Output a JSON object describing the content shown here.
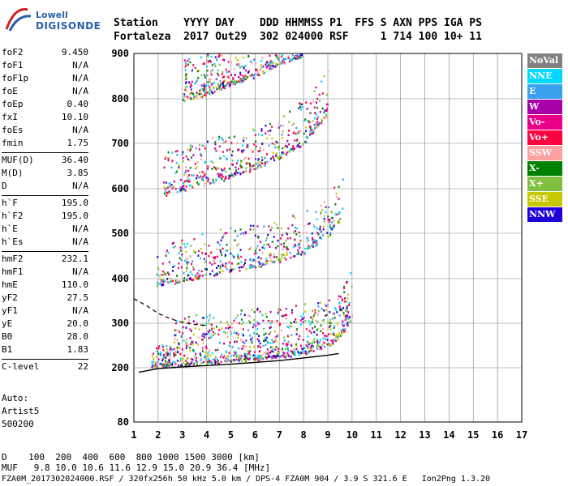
{
  "logo": {
    "line1": "Lowell",
    "line2": "DIGISONDE"
  },
  "header": {
    "labels": "Station    YYYY DAY    DDD HHMMSS P1  FFS S AXN PPS IGA PS",
    "values": "Fortaleza  2017 Out29  302 024000 RSF     1 714 100 10+ 11"
  },
  "params": [
    {
      "label": "foF2",
      "value": "9.450"
    },
    {
      "label": "foF1",
      "value": "N/A"
    },
    {
      "label": "foF1p",
      "value": "N/A"
    },
    {
      "label": "foE",
      "value": "N/A"
    },
    {
      "label": "foEp",
      "value": "0.40"
    },
    {
      "label": "fxI",
      "value": "10.10"
    },
    {
      "label": "foEs",
      "value": "N/A"
    },
    {
      "label": "fmin",
      "value": "1.75"
    },
    {
      "label": "MUF(D)",
      "value": "36.40"
    },
    {
      "label": "M(D)",
      "value": "3.85"
    },
    {
      "label": "D",
      "value": "N/A"
    },
    {
      "label": "h`F",
      "value": "195.0"
    },
    {
      "label": "h`F2",
      "value": "195.0"
    },
    {
      "label": "h`E",
      "value": "N/A"
    },
    {
      "label": "h`Es",
      "value": "N/A"
    },
    {
      "label": "hmF2",
      "value": "232.1"
    },
    {
      "label": "hmF1",
      "value": "N/A"
    },
    {
      "label": "hmE",
      "value": "110.0"
    },
    {
      "label": "yF2",
      "value": "27.5"
    },
    {
      "label": "yF1",
      "value": "N/A"
    },
    {
      "label": "yE",
      "value": "20.0"
    },
    {
      "label": "B0",
      "value": "28.0"
    },
    {
      "label": "B1",
      "value": "1.83"
    },
    {
      "label": "C-level",
      "value": "22"
    }
  ],
  "auto": {
    "line1": "Auto:",
    "line2": "Artist5",
    "line3": "500200"
  },
  "legend": [
    {
      "label": "NoVal",
      "color": "#808080"
    },
    {
      "label": "NNE",
      "color": "#00d8ff"
    },
    {
      "label": "E",
      "color": "#3aa0f0"
    },
    {
      "label": "W",
      "color": "#a800a8"
    },
    {
      "label": "Vo-",
      "color": "#e8008a"
    },
    {
      "label": "Vo+",
      "color": "#ff0040"
    },
    {
      "label": "SSW",
      "color": "#ffa0a0"
    },
    {
      "label": "X-",
      "color": "#008000"
    },
    {
      "label": "X+",
      "color": "#80c040"
    },
    {
      "label": "SSE",
      "color": "#c8c800"
    },
    {
      "label": "NNW",
      "color": "#2000d8"
    }
  ],
  "chart_data": {
    "type": "scatter",
    "xlim": [
      1,
      17
    ],
    "ylim": [
      80,
      900
    ],
    "xticks": [
      "1",
      "2",
      "3",
      "4",
      "5",
      "6",
      "7",
      "8",
      "9",
      "10",
      "11",
      "12",
      "13",
      "14",
      "15",
      "16",
      "17"
    ],
    "yticks": [
      "80",
      "200",
      "300",
      "400",
      "500",
      "600",
      "700",
      "800",
      "900"
    ],
    "grid": true,
    "traces": [
      {
        "name": "O-trace F2 (1st hop)",
        "x": [
          1.7,
          3,
          4,
          5,
          6,
          7,
          8,
          9,
          9.4,
          9.7,
          10
        ],
        "y": [
          205,
          208,
          214,
          218,
          224,
          228,
          236,
          252,
          268,
          290,
          320
        ]
      },
      {
        "name": "2nd hop",
        "x": [
          1.9,
          3,
          4,
          5,
          6,
          7,
          8,
          9,
          9.6
        ],
        "y": [
          390,
          398,
          410,
          420,
          430,
          442,
          460,
          500,
          540
        ]
      },
      {
        "name": "3rd hop",
        "x": [
          2.2,
          3,
          4,
          5,
          6,
          7,
          8,
          9
        ],
        "y": [
          590,
          602,
          615,
          630,
          650,
          672,
          705,
          770
        ]
      },
      {
        "name": "4th hop",
        "x": [
          3,
          4,
          5,
          6,
          7,
          8
        ],
        "y": [
          800,
          815,
          835,
          855,
          880,
          900
        ]
      }
    ],
    "profile_solid": {
      "x": [
        1.2,
        2,
        3,
        4,
        5,
        6,
        7,
        8,
        9,
        9.45
      ],
      "y": [
        190,
        198,
        202,
        205,
        208,
        212,
        216,
        222,
        228,
        232
      ]
    },
    "profile_dashed": {
      "x": [
        1.0,
        1.5,
        2,
        2.5,
        3,
        3.5,
        4
      ],
      "y": [
        355,
        340,
        322,
        310,
        302,
        297,
        295
      ]
    }
  },
  "bottom": {
    "d_row": "D    100  200  400  600  800 1000 1500 3000 [km]",
    "muf_row": "MUF   9.8 10.0 10.6 11.6 12.9 15.0 20.9 36.4 [MHz]"
  },
  "footer": "FZA0M_2017302024000.RSF / 320fx256h 50 kHz 5.0 km / DPS-4 FZA0M 904 / 3.9 S 321.6 E   Ion2Png 1.3.20"
}
